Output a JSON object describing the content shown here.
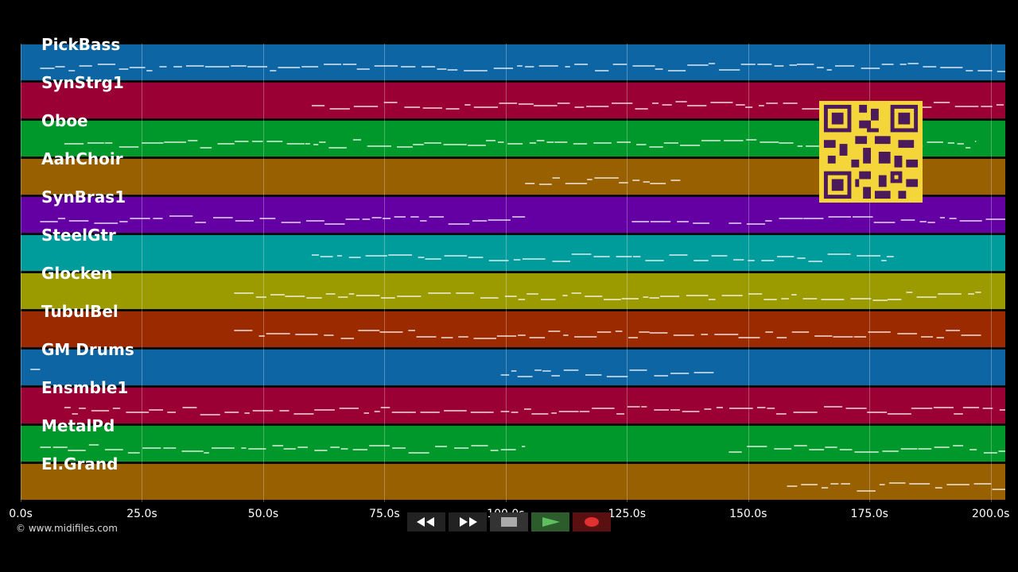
{
  "tracks": [
    {
      "label": "PickBass",
      "color": "#0d66a3"
    },
    {
      "label": "SynStrg1",
      "color": "#9b0035"
    },
    {
      "label": "Oboe",
      "color": "#00982a"
    },
    {
      "label": "AahChoir",
      "color": "#996000"
    },
    {
      "label": "SynBras1",
      "color": "#6400a3"
    },
    {
      "label": "SteelGtr",
      "color": "#009b9b"
    },
    {
      "label": "Glocken",
      "color": "#9b9b00"
    },
    {
      "label": "TubulBel",
      "color": "#9b2a00"
    },
    {
      "label": "GM Drums",
      "color": "#0d66a3"
    },
    {
      "label": "Ensmble1",
      "color": "#9b0035"
    },
    {
      "label": "MetalPd",
      "color": "#00982a"
    },
    {
      "label": "El.Grand",
      "color": "#996000"
    }
  ],
  "time_axis": {
    "ticks": [
      "0.0s",
      "25.0s",
      "50.0s",
      "75.0s",
      "100.0s",
      "125.0s",
      "150.0s",
      "175.0s",
      "200.0s"
    ],
    "tick_values": [
      0,
      25,
      50,
      75,
      100,
      125,
      150,
      175,
      200
    ],
    "max_seconds": 203
  },
  "copyright": "© www.midifiles.com",
  "transport": {
    "rewind_icon": "rewind-icon",
    "forward_icon": "fast-forward-icon",
    "stop_icon": "stop-icon",
    "play_icon": "play-icon",
    "record_icon": "record-icon",
    "play_color": "#3a8a3a",
    "record_color": "#e03030"
  },
  "notes_segments": [
    {
      "track": 0,
      "ranges": [
        [
          4,
          203
        ]
      ]
    },
    {
      "track": 1,
      "ranges": [
        [
          60,
          203
        ]
      ]
    },
    {
      "track": 2,
      "ranges": [
        [
          9,
          197
        ]
      ]
    },
    {
      "track": 3,
      "ranges": [
        [
          104,
          136
        ]
      ]
    },
    {
      "track": 4,
      "ranges": [
        [
          4,
          104
        ],
        [
          126,
          142
        ],
        [
          146,
          203
        ]
      ]
    },
    {
      "track": 5,
      "ranges": [
        [
          60,
          180
        ]
      ]
    },
    {
      "track": 6,
      "ranges": [
        [
          44,
          198
        ]
      ]
    },
    {
      "track": 7,
      "ranges": [
        [
          44,
          198
        ]
      ]
    },
    {
      "track": 8,
      "ranges": [
        [
          2,
          4
        ],
        [
          99,
          143
        ]
      ]
    },
    {
      "track": 9,
      "ranges": [
        [
          9,
          203
        ]
      ]
    },
    {
      "track": 10,
      "ranges": [
        [
          4,
          104
        ],
        [
          146,
          203
        ]
      ]
    },
    {
      "track": 11,
      "ranges": [
        [
          158,
          203
        ]
      ]
    }
  ]
}
